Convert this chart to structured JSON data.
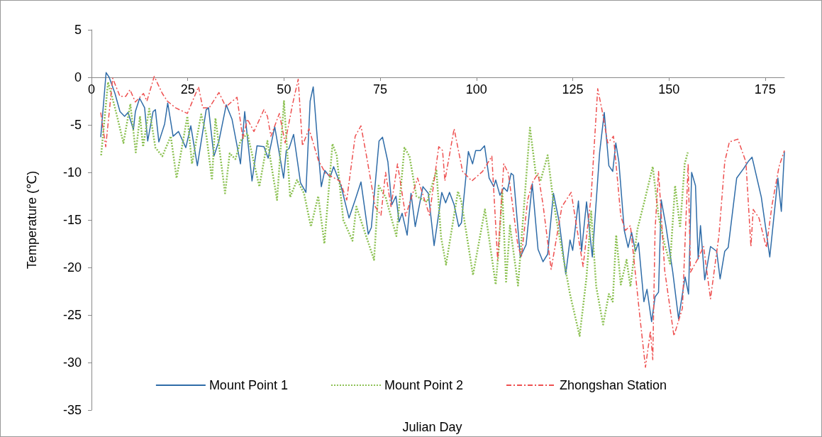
{
  "chart_data": {
    "type": "line",
    "xlabel": "Julian Day",
    "ylabel": "Temperature (℃)",
    "xlim": [
      0,
      180
    ],
    "xticks": [
      0,
      25,
      50,
      75,
      100,
      125,
      150,
      175
    ],
    "ylim": [
      -35,
      5
    ],
    "yticks": [
      -35,
      -30,
      -25,
      -20,
      -15,
      -10,
      -5,
      0,
      5
    ],
    "grid": false,
    "legend": "bottom",
    "marker": "none",
    "series": [
      {
        "name": "Mount Point 1",
        "color": "#2f6ca8",
        "line_style": "solid",
        "x": [
          2.4,
          3.8,
          4.6,
          6.1,
          7.4,
          8.6,
          9.5,
          10.9,
          11.4,
          12.5,
          13.8,
          14.6,
          16,
          16.6,
          17.5,
          19,
          19.8,
          21.2,
          22.6,
          24.5,
          25.8,
          27.5,
          29.8,
          30.4,
          31.8,
          33.1,
          35,
          36.5,
          38.7,
          39.8,
          41.7,
          43,
          44.8,
          45.9,
          47.6,
          49.9,
          50.6,
          51.3,
          52.5,
          54.3,
          55.7,
          56.8,
          57.6,
          58.9,
          59.7,
          60.6,
          62,
          62.9,
          64.8,
          66.9,
          68.5,
          70,
          71.9,
          72.7,
          74.7,
          75.6,
          77,
          78,
          79.1,
          79.9,
          80.7,
          82,
          83,
          84.1,
          86.1,
          87.5,
          89,
          91,
          92,
          93,
          94.2,
          95.4,
          96.1,
          97.9,
          99,
          99.8,
          101,
          102.1,
          103.3,
          104.5,
          105,
          106.1,
          107.1,
          108,
          109,
          109.6,
          111.4,
          112.9,
          114.5,
          116,
          117.3,
          118.5,
          120,
          121.5,
          123.2,
          124.3,
          125,
          126.5,
          127.3,
          128.6,
          130.1,
          132,
          133.2,
          134.4,
          135.4,
          136.2,
          137,
          138.4,
          139.4,
          140.3,
          141.3,
          142.1,
          143.5,
          144.3,
          145.5,
          146.4,
          147.3,
          148,
          149.2,
          151,
          152.5,
          154.2,
          155.1,
          155.9,
          156.9,
          157.6,
          158.2,
          159.3,
          160.8,
          162.4,
          163.3,
          164.5,
          165.4,
          167.6,
          169.4,
          170.7,
          171.6,
          174,
          176.2,
          178.3,
          179.2,
          180
        ],
        "values": [
          -6.3,
          0.5,
          0,
          -1.7,
          -3.6,
          -4.1,
          -3.7,
          -5.5,
          -3.6,
          -2.2,
          -3.2,
          -6.7,
          -3.6,
          -3.4,
          -6.8,
          -4.9,
          -2.7,
          -6.2,
          -5.7,
          -7.4,
          -5.1,
          -9.3,
          -3.4,
          -3.2,
          -8.3,
          -6.7,
          -2.9,
          -4.4,
          -9.1,
          -3.6,
          -10.9,
          -7.2,
          -7.3,
          -8.5,
          -5.2,
          -10.6,
          -7.7,
          -7.5,
          -6,
          -11.1,
          -12.1,
          -2.5,
          -1,
          -7.7,
          -11.5,
          -9.8,
          -10.5,
          -9.4,
          -11.4,
          -14.8,
          -12.9,
          -11,
          -16.5,
          -15.8,
          -6.7,
          -6.3,
          -8.9,
          -13.4,
          -12.5,
          -15.2,
          -14.3,
          -16.6,
          -12.2,
          -15.7,
          -11.5,
          -12.2,
          -17.7,
          -12.1,
          -13.2,
          -12.1,
          -13.4,
          -15.7,
          -15.3,
          -7.8,
          -9.1,
          -7.7,
          -7.7,
          -7.2,
          -10.6,
          -11.5,
          -10.8,
          -12.4,
          -11.6,
          -12,
          -10.1,
          -10.3,
          -18.9,
          -17.6,
          -11.2,
          -18.1,
          -19.4,
          -18.6,
          -12.2,
          -15.2,
          -20.7,
          -17.1,
          -18.2,
          -13,
          -18.3,
          -13.1,
          -18.9,
          -7.9,
          -3.7,
          -9.3,
          -9.9,
          -6.9,
          -8.9,
          -16.1,
          -17.9,
          -16.3,
          -18.3,
          -17.4,
          -23.6,
          -22.3,
          -25.7,
          -23.1,
          -22.6,
          -12.9,
          -15.6,
          -20.5,
          -25.4,
          -21,
          -22.8,
          -10,
          -11.4,
          -19.1,
          -15.6,
          -21.3,
          -17.8,
          -18.3,
          -21.2,
          -18.3,
          -17.9,
          -10.6,
          -9.6,
          -8.8,
          -8.4,
          -12.6,
          -18.9,
          -10.6,
          -14.1,
          -7.8
        ]
      },
      {
        "name": "Mount Point 2",
        "color": "#8cc152",
        "line_style": "dotted",
        "x": [
          2.5,
          4.3,
          6.1,
          8.3,
          10.1,
          11.5,
          12.6,
          13.4,
          15,
          16.6,
          18.4,
          20.6,
          22.1,
          24.9,
          26.1,
          28.5,
          29.8,
          31.3,
          32.2,
          34.7,
          35.9,
          37.4,
          38.7,
          40.5,
          43.6,
          45.7,
          48.2,
          50,
          51.6,
          53.4,
          55.2,
          57,
          58.9,
          60.5,
          62.6,
          63.7,
          65.4,
          67.8,
          68.8,
          70.6,
          73.4,
          74.6,
          76.4,
          79.2,
          81.3,
          82.6,
          84.4,
          87.2,
          89.6,
          90.8,
          92.1,
          95.2,
          96.1,
          99.1,
          102.2,
          105,
          105.9,
          106.7,
          107.7,
          108.7,
          110.8,
          113.9,
          115.4,
          116.7,
          118.5,
          120,
          121.5,
          124.3,
          126.8,
          128.6,
          129.8,
          131.1,
          132.9,
          134.4,
          135.4,
          136.3,
          137.5,
          139,
          140,
          141.8,
          143.6,
          145.8,
          147.3,
          148.9,
          150.3,
          151.6,
          152.9,
          154.1,
          154.9
        ],
        "values": [
          -8.2,
          -0.5,
          -3.2,
          -6.9,
          -2.8,
          -7.9,
          -4.1,
          -7.3,
          -3.3,
          -7.4,
          -8.3,
          -6.2,
          -10.6,
          -4.1,
          -9.1,
          -3.9,
          -6,
          -10.8,
          -4.3,
          -12.2,
          -8,
          -8.6,
          -6.7,
          -5.9,
          -11.5,
          -6.7,
          -12.9,
          -2.5,
          -12.6,
          -10.8,
          -12.2,
          -15.7,
          -12.5,
          -17.5,
          -7,
          -8.2,
          -15,
          -17.2,
          -13.6,
          -15.8,
          -19.2,
          -11.4,
          -12.6,
          -16.7,
          -7.4,
          -8.3,
          -12.5,
          -13.1,
          -9.8,
          -16.8,
          -19.7,
          -12,
          -13.1,
          -20.8,
          -13.9,
          -21.8,
          -17.6,
          -11.9,
          -21.5,
          -15.6,
          -21.9,
          -5.3,
          -10.1,
          -10.8,
          -8.2,
          -13.1,
          -16.6,
          -22.8,
          -27.2,
          -21,
          -14.1,
          -22,
          -26,
          -22.8,
          -23.6,
          -16.6,
          -21.8,
          -19.2,
          -22,
          -16,
          -13.1,
          -9.4,
          -14.6,
          -17.6,
          -19.6,
          -11.4,
          -15.8,
          -9.1,
          -7.9
        ]
      },
      {
        "name": "Zhongshan Station",
        "color": "#ee5050",
        "line_style": "dashed",
        "x": [
          2.4,
          3.7,
          5.5,
          7.4,
          8.9,
          10,
          11.4,
          13.5,
          14.4,
          16.3,
          18.4,
          19.7,
          21.8,
          24.9,
          27.8,
          28.9,
          30.6,
          33.1,
          34.9,
          37.8,
          39.3,
          40.5,
          42.2,
          44.8,
          45.7,
          46.6,
          48.8,
          50.3,
          52.2,
          53.7,
          54.8,
          56.5,
          58.9,
          60.8,
          64.5,
          66.3,
          68.5,
          70,
          71.5,
          73.7,
          75.2,
          76.4,
          77.8,
          79.5,
          81.6,
          84.7,
          87.8,
          90.2,
          91.2,
          91.8,
          94.2,
          96.4,
          98.8,
          101.6,
          104,
          105.5,
          107.1,
          108.3,
          110.8,
          111.7,
          113.3,
          114.5,
          116,
          117.3,
          119.4,
          122.2,
          124.6,
          127.7,
          129.8,
          131.5,
          132.6,
          134.1,
          135.6,
          137.5,
          138.7,
          140,
          142.4,
          143.9,
          145.2,
          145.8,
          146.4,
          147.3,
          148.9,
          151.3,
          153.5,
          155,
          155.6,
          157.5,
          159,
          160.8,
          163,
          164.5,
          165.7,
          167.9,
          170,
          171.3,
          171.9,
          173.4,
          175.3,
          176.8,
          178.6,
          180
        ],
        "values": [
          -3.7,
          -7.3,
          -0.1,
          -2,
          -2,
          -1.3,
          -2.6,
          -1.7,
          -2.5,
          0.1,
          -1.7,
          -2.5,
          -3.2,
          -3.8,
          -1,
          -3.2,
          -3.2,
          -1.6,
          -3.1,
          -2.1,
          -6.4,
          -4.4,
          -5.7,
          -3.4,
          -4.1,
          -6.2,
          -3.8,
          -6.9,
          -2.9,
          -0.2,
          -7.2,
          -5.4,
          -8.7,
          -10.1,
          -10.9,
          -12.9,
          -6.2,
          -5.1,
          -8.4,
          -13.6,
          -14.5,
          -10,
          -13.6,
          -9.1,
          -14.6,
          -10.6,
          -14.5,
          -7.3,
          -7.7,
          -10.9,
          -5.4,
          -9.9,
          -10.9,
          -9.9,
          -8.3,
          -19.2,
          -9.1,
          -10.1,
          -17.8,
          -18.8,
          -12.9,
          -11.1,
          -10.1,
          -13.4,
          -20.2,
          -13.6,
          -12.1,
          -19.9,
          -12.5,
          -1.2,
          -3.4,
          -6.9,
          -6.2,
          -14.6,
          -16.1,
          -15.6,
          -25,
          -30.5,
          -26.7,
          -29.7,
          -16.1,
          -9.9,
          -20.3,
          -27.2,
          -24.3,
          -9.1,
          -20.5,
          -19.1,
          -17.8,
          -23.3,
          -16.6,
          -8.9,
          -6.8,
          -6.5,
          -8.9,
          -17.8,
          -13.9,
          -14.8,
          -17.9,
          -13.4,
          -9.4,
          -7.7
        ]
      }
    ]
  }
}
